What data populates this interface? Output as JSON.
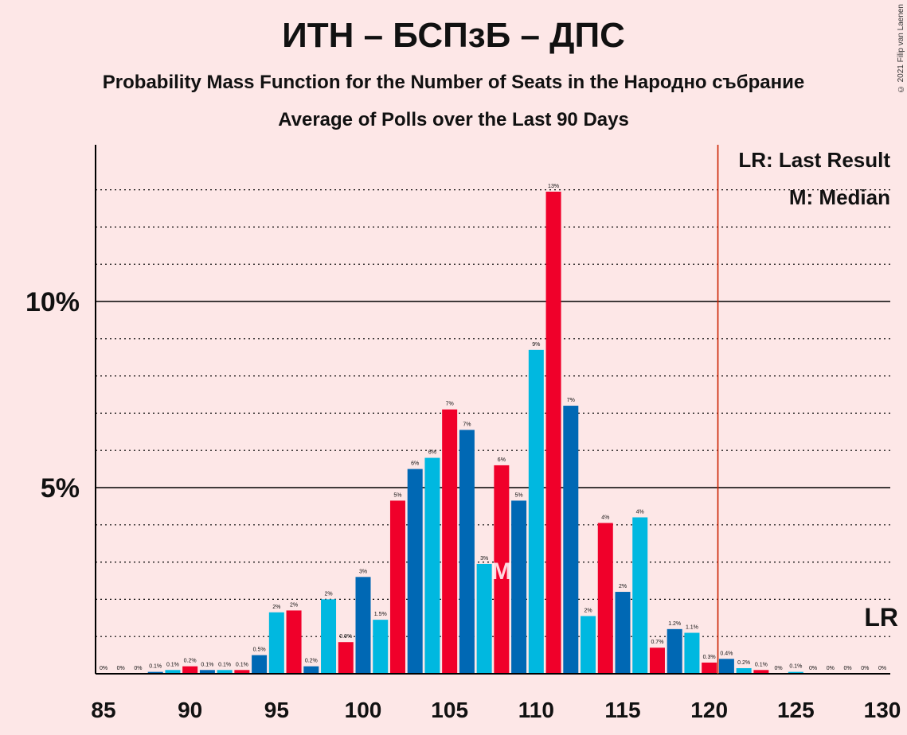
{
  "title": "ИТН – БСПзБ – ДПС",
  "subtitle": "Probability Mass Function for the Number of Seats in the Народно събрание",
  "subtitle2": "Average of Polls over the Last 90 Days",
  "copyright": "© 2021 Filip van Laenen",
  "legend": {
    "last_result": "LR: Last Result",
    "median": "M: Median"
  },
  "colors": {
    "background": "#fde7e7",
    "series": [
      "#0068b4",
      "#00b8e0",
      "#f0002a"
    ],
    "last_result_line": "#cc2200"
  },
  "chart_data": {
    "type": "bar",
    "x": [
      85,
      86,
      87,
      88,
      89,
      90,
      91,
      92,
      93,
      94,
      95,
      96,
      97,
      98,
      99,
      100,
      101,
      102,
      103,
      104,
      105,
      106,
      107,
      108,
      109,
      110,
      111,
      112,
      113,
      114,
      115,
      116,
      117,
      118,
      119,
      120,
      121,
      122,
      123,
      124,
      125,
      126,
      127,
      128,
      129,
      130
    ],
    "values": [
      0,
      0,
      0,
      0.05,
      0.1,
      0.2,
      0.1,
      0.1,
      0.1,
      0.5,
      1.65,
      1.7,
      0.2,
      2.0,
      0.85,
      2.6,
      1.45,
      4.65,
      5.5,
      5.8,
      7.1,
      6.55,
      2.95,
      5.6,
      4.65,
      8.7,
      12.95,
      7.2,
      1.55,
      4.05,
      2.2,
      4.2,
      0.7,
      1.2,
      1.1,
      0.3,
      0.4,
      0.15,
      0.1,
      0,
      0.05,
      0,
      0,
      0,
      0,
      0
    ],
    "labels": [
      "0%",
      "0%",
      "0%",
      "0.1%",
      "0.1%",
      "0.2%",
      "0.1%",
      "0.1%",
      "0.1%",
      "0.5%",
      "2%",
      "2%",
      "0.2%",
      "2%",
      "0.9%",
      "3%",
      "1.5%",
      "5%",
      "6%",
      "6%",
      "7%",
      "7%",
      "3%",
      "6%",
      "5%",
      "9%",
      "13%",
      "7%",
      "2%",
      "4%",
      "2%",
      "4%",
      "0.7%",
      "1.2%",
      "1.1%",
      "0.3%",
      "0.4%",
      "0.2%",
      "0.1%",
      "0%",
      "0.1%",
      "0%",
      "0%",
      "0%",
      "0%",
      "0%"
    ],
    "x_ticks": [
      "85",
      "90",
      "95",
      "100",
      "105",
      "110",
      "115",
      "120",
      "125",
      "130"
    ],
    "y_ticks": [
      "5%",
      "10%"
    ],
    "ylim": [
      0,
      14
    ],
    "xlim": [
      85,
      130
    ],
    "median": 108,
    "median_label": "M",
    "last_result": 120.5,
    "last_result_label": "LR",
    "grid": true
  }
}
